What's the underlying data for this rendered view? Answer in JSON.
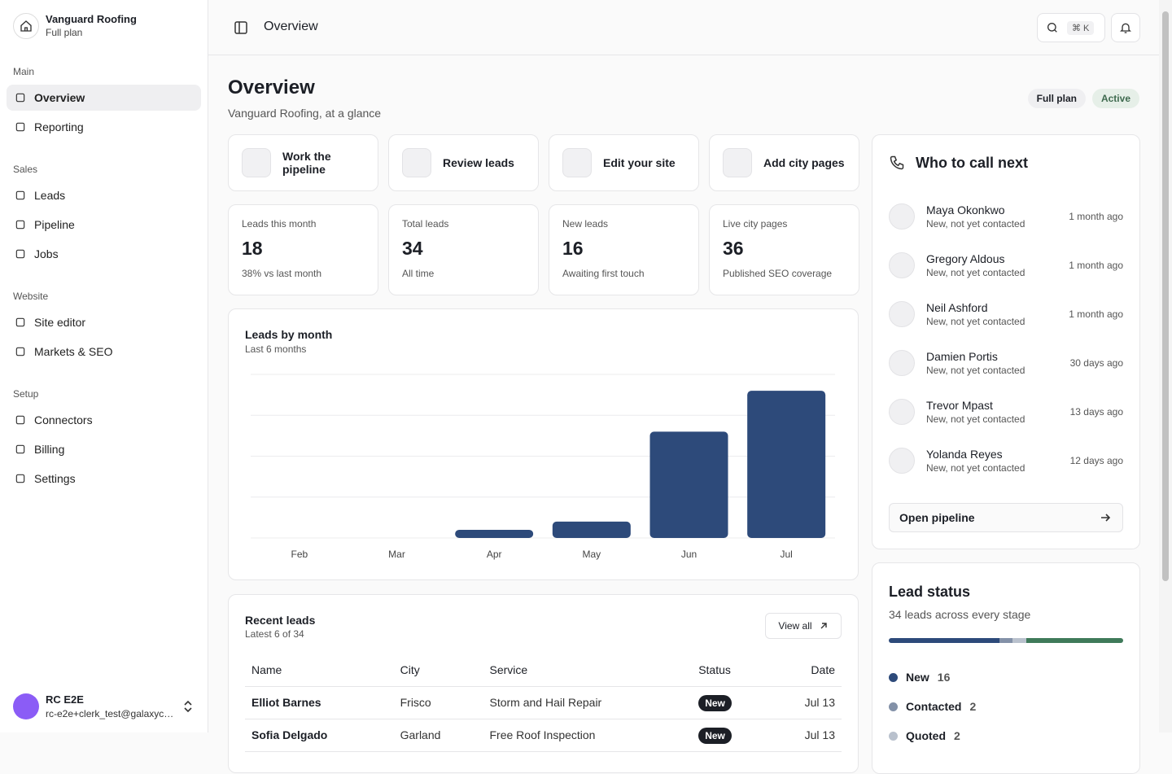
{
  "sidebar": {
    "brand": {
      "name": "Vanguard Roofing",
      "plan": "Full plan"
    },
    "groups": [
      {
        "label": "Main",
        "items": [
          "Overview",
          "Reporting"
        ]
      },
      {
        "label": "Sales",
        "items": [
          "Leads",
          "Pipeline",
          "Jobs"
        ]
      },
      {
        "label": "Website",
        "items": [
          "Site editor",
          "Markets & SEO"
        ]
      },
      {
        "label": "Setup",
        "items": [
          "Connectors",
          "Billing",
          "Settings"
        ]
      }
    ],
    "user": {
      "name": "RC E2E",
      "email": "rc-e2e+clerk_test@galaxyc…"
    }
  },
  "topbar": {
    "title": "Overview",
    "shortcut": "⌘ K"
  },
  "header": {
    "title": "Overview",
    "subtitle": "Vanguard Roofing, at a glance",
    "badges": [
      "Full plan",
      "Active"
    ]
  },
  "actions": [
    "Work the pipeline",
    "Review leads",
    "Edit your site",
    "Add city pages"
  ],
  "stats": [
    {
      "label": "Leads this month",
      "value": "18",
      "note": "38% vs last month"
    },
    {
      "label": "Total leads",
      "value": "34",
      "note": "All time"
    },
    {
      "label": "New leads",
      "value": "16",
      "note": "Awaiting first touch"
    },
    {
      "label": "Live city pages",
      "value": "36",
      "note": "Published SEO coverage"
    }
  ],
  "chart_data": {
    "type": "bar",
    "title": "Leads by month",
    "subtitle": "Last 6 months",
    "categories": [
      "Feb",
      "Mar",
      "Apr",
      "May",
      "Jun",
      "Jul"
    ],
    "values": [
      0,
      0,
      1,
      2,
      13,
      18
    ],
    "color": "#2d4a7a",
    "ylim": [
      0,
      20
    ],
    "yticks": [
      0,
      5,
      10,
      15,
      20
    ],
    "grid": true
  },
  "recent_leads": {
    "title": "Recent leads",
    "subtitle": "Latest 6 of 34",
    "button": "View all",
    "columns": [
      "Name",
      "City",
      "Service",
      "Status",
      "Date"
    ],
    "rows": [
      [
        "Elliot Barnes",
        "Frisco",
        "Storm and Hail Repair",
        "New",
        "Jul 13"
      ],
      [
        "Sofia Delgado",
        "Garland",
        "Free Roof Inspection",
        "New",
        "Jul 13"
      ]
    ]
  },
  "call_next": {
    "title": "Who to call next",
    "items": [
      {
        "name": "Maya Okonkwo",
        "status": "New, not yet contacted",
        "time": "1 month ago"
      },
      {
        "name": "Gregory Aldous",
        "status": "New, not yet contacted",
        "time": "1 month ago"
      },
      {
        "name": "Neil Ashford",
        "status": "New, not yet contacted",
        "time": "1 month ago"
      },
      {
        "name": "Damien Portis",
        "status": "New, not yet contacted",
        "time": "30 days ago"
      },
      {
        "name": "Trevor Mpast",
        "status": "New, not yet contacted",
        "time": "13 days ago"
      },
      {
        "name": "Yolanda Reyes",
        "status": "New, not yet contacted",
        "time": "12 days ago"
      }
    ],
    "button": "Open pipeline"
  },
  "lead_status": {
    "title": "Lead status",
    "subtitle": "34 leads across every stage",
    "segments": [
      {
        "name": "New",
        "value": 16,
        "color": "#2d4a7a"
      },
      {
        "name": "Contacted",
        "value": 2,
        "color": "#8391a8"
      },
      {
        "name": "Quoted",
        "value": 2,
        "color": "#b9c1cd"
      },
      {
        "value": 14,
        "color": "#3f7a5a"
      }
    ]
  }
}
